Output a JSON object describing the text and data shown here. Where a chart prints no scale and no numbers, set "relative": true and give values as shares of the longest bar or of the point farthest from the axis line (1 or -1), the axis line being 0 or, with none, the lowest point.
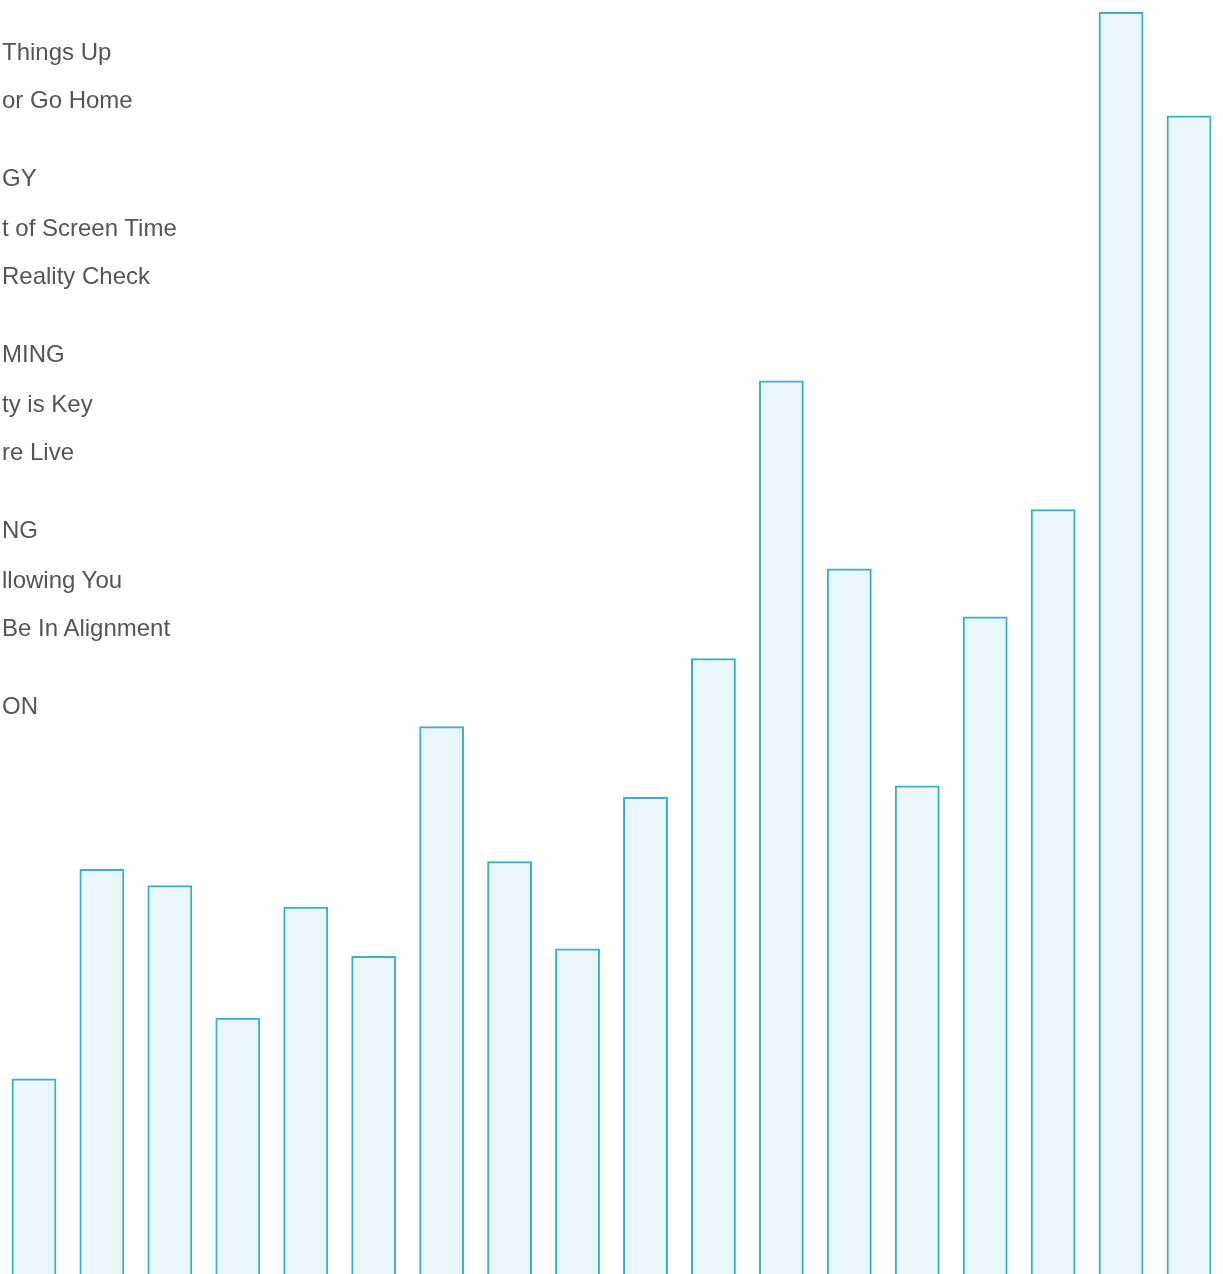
{
  "chart_data": {
    "type": "bar",
    "relative": true,
    "categories": [
      null,
      null,
      null,
      null,
      null,
      null,
      null,
      null,
      null,
      null,
      null,
      null,
      null,
      null,
      null,
      null,
      null,
      null
    ],
    "values": [
      0.155,
      0.321,
      0.308,
      0.203,
      0.291,
      0.252,
      0.434,
      0.327,
      0.258,
      0.378,
      0.488,
      0.708,
      0.559,
      0.387,
      0.521,
      0.606,
      1,
      0.918
    ],
    "color": "#3aaed0",
    "annotations": [
      "Things Up",
      "or Go Home",
      "GY",
      "t of Screen Time",
      "Reality Check",
      "MING",
      "ty is Key",
      "re Live",
      "NG",
      "llowing You",
      "Be In Alignment",
      "ON"
    ]
  }
}
